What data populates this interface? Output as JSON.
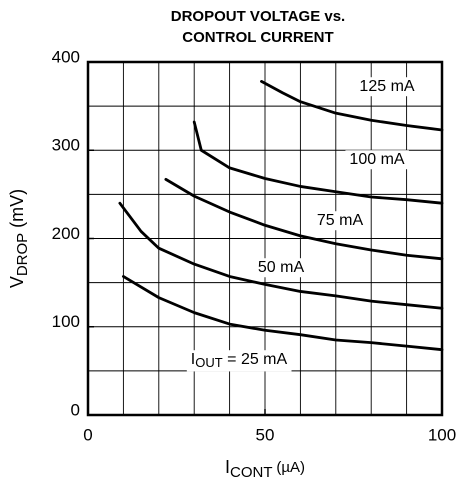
{
  "chart_data": {
    "type": "line",
    "title": [
      "DROPOUT VOLTAGE vs.",
      "CONTROL CURRENT"
    ],
    "xlabel": {
      "main": "I",
      "sub": "CONT",
      "rest": " (µA)"
    },
    "ylabel": {
      "main": "V",
      "sub": "DROP",
      "rest": " (mV)"
    },
    "xlim": [
      0,
      100
    ],
    "ylim": [
      0,
      400
    ],
    "xticks": [
      0,
      50,
      100
    ],
    "yticks": [
      0,
      100,
      200,
      300,
      400
    ],
    "xgrid": [
      10,
      20,
      30,
      40,
      50,
      60,
      70,
      80,
      90
    ],
    "ygrid": [
      50,
      100,
      150,
      200,
      250,
      300,
      350
    ],
    "grid": true,
    "series": [
      {
        "name": "125 mA",
        "color": "#000000",
        "x": [
          49,
          55,
          60,
          70,
          80,
          90,
          100
        ],
        "values": [
          378,
          365,
          355,
          342,
          334,
          328,
          323
        ]
      },
      {
        "name": "100 mA",
        "color": "#000000",
        "x": [
          30,
          32,
          40,
          50,
          60,
          70,
          80,
          90,
          100
        ],
        "values": [
          332,
          300,
          280,
          268,
          259,
          253,
          247,
          244,
          240
        ]
      },
      {
        "name": "75 mA",
        "color": "#000000",
        "x": [
          22,
          30,
          40,
          50,
          60,
          70,
          80,
          90,
          100
        ],
        "values": [
          267,
          248,
          230,
          215,
          203,
          194,
          187,
          181,
          177
        ]
      },
      {
        "name": "50 mA",
        "color": "#000000",
        "x": [
          9,
          15,
          20,
          30,
          40,
          50,
          60,
          70,
          80,
          90,
          100
        ],
        "values": [
          240,
          208,
          189,
          171,
          157,
          148,
          140,
          135,
          129,
          125,
          121
        ]
      },
      {
        "name": "25 mA",
        "color": "#000000",
        "label_prefix": {
          "main": "I",
          "sub": "OUT",
          "rest": " = "
        },
        "x": [
          10,
          20,
          30,
          40,
          50,
          60,
          70,
          80,
          90,
          100
        ],
        "values": [
          157,
          133,
          116,
          103,
          96,
          91,
          85,
          82,
          78,
          74
        ]
      }
    ]
  }
}
